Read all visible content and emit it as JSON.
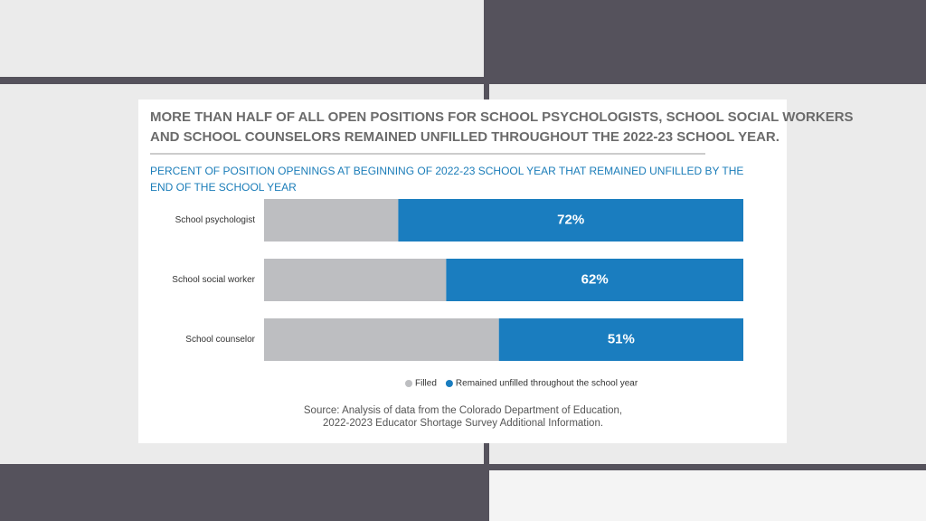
{
  "chart_data": {
    "type": "stacked-barh",
    "title": [
      "MORE THAN HALF OF ALL OPEN POSITIONS FOR SCHOOL PSYCHOLOGISTS, SCHOOL SOCIAL WORKERS",
      "AND SCHOOL COUNSELORS REMAINED UNFILLED THROUGHOUT THE 2022-23 SCHOOL YEAR."
    ],
    "subtitle": [
      "PERCENT OF POSITION OPENINGS AT BEGINNING OF 2022-23 SCHOOL YEAR THAT REMAINED UNFILLED BY THE",
      "END OF THE SCHOOL YEAR"
    ],
    "categories": [
      "School psychologist",
      "School social worker",
      "School counselor"
    ],
    "series": [
      {
        "name": "Filled",
        "color": "#bdbec1",
        "values": [
          28,
          38,
          49
        ]
      },
      {
        "name": "Remained unfilled throughout the school year",
        "color": "#1a7dbf",
        "values": [
          72,
          62,
          51
        ],
        "value_labels": [
          "72%",
          "62%",
          "51%"
        ]
      }
    ],
    "xlim": [
      0,
      100
    ],
    "legend": "bottom",
    "source": [
      "Source: Analysis of data from the Colorado Department of Education,",
      "2022-2023 Educator Shortage Survey Additional Information."
    ]
  }
}
